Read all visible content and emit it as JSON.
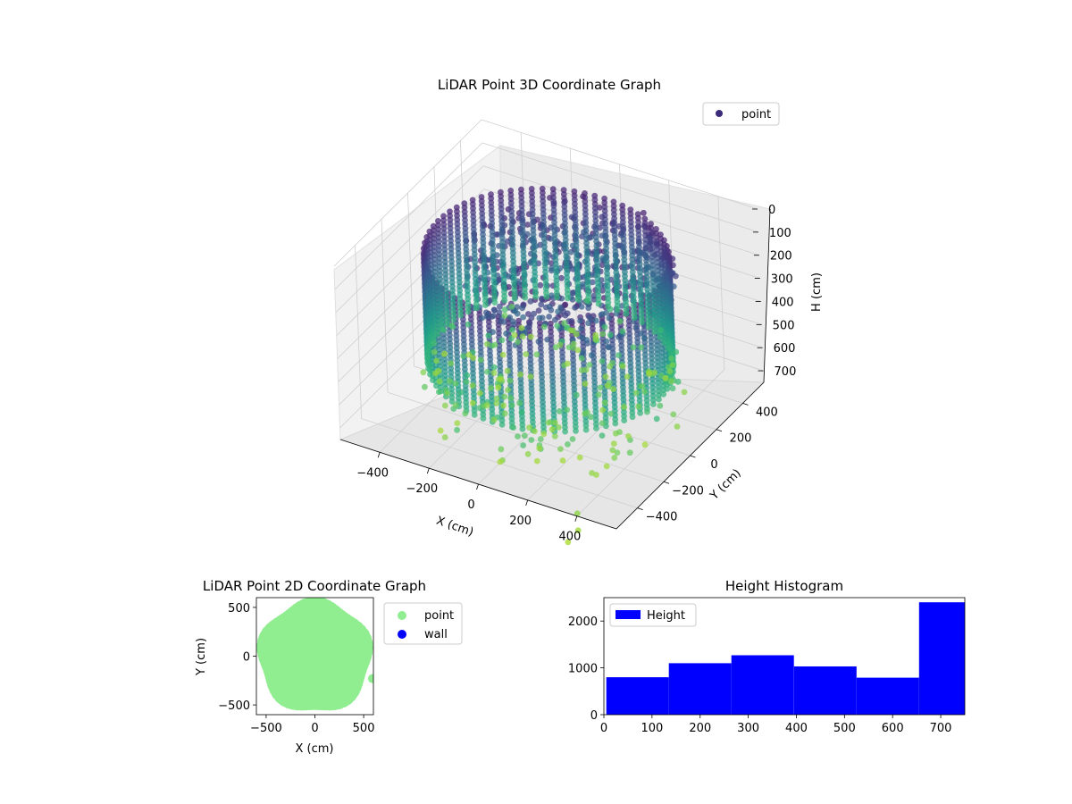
{
  "chart_data": [
    {
      "type": "scatter3d",
      "title": "LiDAR Point 3D Coordinate Graph",
      "xlabel": "X (cm)",
      "ylabel": "Y (cm)",
      "zlabel": "H (cm)",
      "x_ticks": [
        "−400",
        "−200",
        "0",
        "200",
        "400"
      ],
      "y_ticks": [
        "−400",
        "−200",
        "0",
        "200",
        "400"
      ],
      "z_ticks": [
        "0",
        "100",
        "200",
        "300",
        "400",
        "500",
        "600",
        "700"
      ],
      "xlim": [
        -560,
        560
      ],
      "ylim": [
        -560,
        560
      ],
      "zlim": [
        0,
        750
      ],
      "z_inverted": true,
      "grid": true,
      "colormap": "viridis",
      "legend": {
        "position": "top-right",
        "entries": [
          {
            "name": "point",
            "color": "#3b2a7a"
          }
        ]
      }
    },
    {
      "type": "scatter",
      "title": "LiDAR Point 2D Coordinate Graph",
      "xlabel": "X (cm)",
      "ylabel": "Y (cm)",
      "x_ticks": [
        "−500",
        "0",
        "500"
      ],
      "y_ticks": [
        "500",
        "0",
        "−500"
      ],
      "xlim": [
        -600,
        600
      ],
      "ylim": [
        -600,
        600
      ],
      "shape": "dense circular point cloud, radius approx 520 cm",
      "legend": {
        "position": "outside-right",
        "entries": [
          {
            "name": "point",
            "color": "#90ee90"
          },
          {
            "name": "wall",
            "color": "#0000ff"
          }
        ]
      }
    },
    {
      "type": "histogram",
      "title": "Height Histogram",
      "xlabel": "",
      "ylabel": "",
      "x_ticks": [
        "0",
        "100",
        "200",
        "300",
        "400",
        "500",
        "600",
        "700"
      ],
      "y_ticks": [
        "0",
        "1000",
        "2000"
      ],
      "xlim": [
        0,
        750
      ],
      "ylim": [
        0,
        2500
      ],
      "color": "#0000ff",
      "bins": [
        {
          "start": 5,
          "end": 135,
          "count": 800
        },
        {
          "start": 135,
          "end": 265,
          "count": 1100
        },
        {
          "start": 265,
          "end": 395,
          "count": 1270
        },
        {
          "start": 395,
          "end": 525,
          "count": 1030
        },
        {
          "start": 525,
          "end": 655,
          "count": 790
        },
        {
          "start": 655,
          "end": 750,
          "count": 2400
        }
      ],
      "legend": {
        "position": "top-left",
        "entries": [
          {
            "name": "Height",
            "color": "#0000ff"
          }
        ]
      }
    }
  ]
}
